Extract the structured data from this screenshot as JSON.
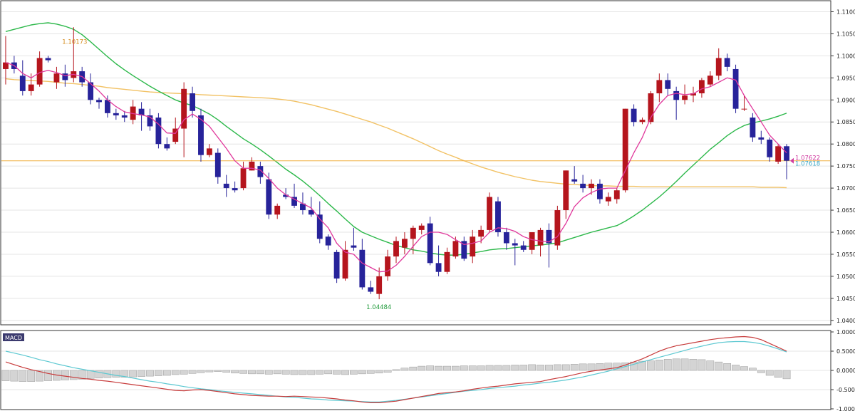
{
  "colors": {
    "bull": "#b5151d",
    "bear": "#27239a",
    "ma_fast": "#e0379b",
    "ma_mid": "#2cb84a",
    "ma_slow": "#f2c265",
    "macd_line": "#c73b3b",
    "signal_line": "#5cc8d1",
    "hist_fill": "#d4d4d4",
    "grid": "#e4e4e4",
    "hline": "#f0b040"
  },
  "price_axis": {
    "ticks": [
      "1.11000",
      "1.10500",
      "1.10000",
      "1.09500",
      "1.09000",
      "1.08500",
      "1.08000",
      "1.07500",
      "1.07000",
      "1.06500",
      "1.06000",
      "1.05500",
      "1.05000",
      "1.04500",
      "1.04000"
    ],
    "ylim": [
      1.039,
      1.1125
    ]
  },
  "annotations": {
    "high_label": "1.10173",
    "low_label": "1.04484",
    "price_line_1": "1.07622",
    "price_line_2": "1.07618"
  },
  "macd_panel": {
    "tag": "MACD",
    "ticks": [
      "1.0000",
      "0.5000",
      "0.0000",
      "-0.5000",
      "-1.0000"
    ],
    "ylim": [
      -1.0,
      1.0
    ]
  },
  "chart_data": [
    {
      "type": "candlestick",
      "title": "",
      "ohlc": [
        [
          1.097,
          1.1045,
          1.0935,
          1.0985
        ],
        [
          1.0985,
          1.1,
          1.096,
          1.097
        ],
        [
          1.0955,
          1.099,
          1.091,
          1.092
        ],
        [
          1.092,
          1.096,
          1.091,
          1.0935
        ],
        [
          1.0935,
          1.101,
          1.093,
          1.0995
        ],
        [
          1.0995,
          1.1,
          1.0985,
          1.099
        ],
        [
          1.094,
          1.0975,
          1.0925,
          1.096
        ],
        [
          1.096,
          1.098,
          1.093,
          1.0945
        ],
        [
          1.095,
          1.1065,
          1.094,
          1.0965
        ],
        [
          1.0965,
          1.0975,
          1.093,
          1.094
        ],
        [
          1.094,
          1.096,
          1.089,
          1.09
        ],
        [
          1.09,
          1.0905,
          1.088,
          1.0895
        ],
        [
          1.09,
          1.091,
          1.086,
          1.087
        ],
        [
          1.087,
          1.088,
          1.0855,
          1.0865
        ],
        [
          1.0865,
          1.0875,
          1.085,
          1.086
        ],
        [
          1.0855,
          1.09,
          1.0845,
          1.0885
        ],
        [
          1.088,
          1.0895,
          1.083,
          1.0865
        ],
        [
          1.0865,
          1.088,
          1.083,
          1.084
        ],
        [
          1.086,
          1.087,
          1.079,
          1.08
        ],
        [
          1.08,
          1.0815,
          1.0785,
          1.079
        ],
        [
          1.0805,
          1.086,
          1.08,
          1.0835
        ],
        [
          1.0835,
          1.094,
          1.077,
          1.0925
        ],
        [
          1.0915,
          1.093,
          1.086,
          1.0875
        ],
        [
          1.0865,
          1.088,
          1.076,
          1.0775
        ],
        [
          1.0775,
          1.08,
          1.077,
          1.079
        ],
        [
          1.078,
          1.079,
          1.071,
          1.0725
        ],
        [
          1.071,
          1.073,
          1.068,
          1.07
        ],
        [
          1.07,
          1.0715,
          1.069,
          1.0695
        ],
        [
          1.07,
          1.076,
          1.0695,
          1.0745
        ],
        [
          1.074,
          1.077,
          1.074,
          1.076
        ],
        [
          1.075,
          1.076,
          1.071,
          1.0725
        ],
        [
          1.072,
          1.0735,
          1.063,
          1.064
        ],
        [
          1.064,
          1.0665,
          1.063,
          1.066
        ],
        [
          1.0685,
          1.07,
          1.0675,
          1.068
        ],
        [
          1.068,
          1.071,
          1.0655,
          1.066
        ],
        [
          1.0665,
          1.069,
          1.064,
          1.065
        ],
        [
          1.065,
          1.068,
          1.0635,
          1.064
        ],
        [
          1.064,
          1.067,
          1.0575,
          1.0585
        ],
        [
          1.059,
          1.0595,
          1.056,
          1.057
        ],
        [
          1.0555,
          1.056,
          1.0485,
          1.0495
        ],
        [
          1.0495,
          1.058,
          1.049,
          1.056
        ],
        [
          1.057,
          1.061,
          1.0558,
          1.0565
        ],
        [
          1.056,
          1.0585,
          1.047,
          1.0475
        ],
        [
          1.0475,
          1.049,
          1.046,
          1.0465
        ],
        [
          1.046,
          1.052,
          1.0448,
          1.05
        ],
        [
          1.05,
          1.056,
          1.049,
          1.0545
        ],
        [
          1.0545,
          1.059,
          1.053,
          1.058
        ],
        [
          1.0565,
          1.06,
          1.055,
          1.0585
        ],
        [
          1.0585,
          1.0615,
          1.055,
          1.061
        ],
        [
          1.0605,
          1.062,
          1.0595,
          1.0615
        ],
        [
          1.062,
          1.0635,
          1.0525,
          1.053
        ],
        [
          1.053,
          1.057,
          1.05,
          1.051
        ],
        [
          1.051,
          1.0565,
          1.0505,
          1.0555
        ],
        [
          1.0545,
          1.059,
          1.054,
          1.058
        ],
        [
          1.058,
          1.059,
          1.0535,
          1.054
        ],
        [
          1.0545,
          1.0605,
          1.053,
          1.059
        ],
        [
          1.059,
          1.0615,
          1.0575,
          1.0605
        ],
        [
          1.0605,
          1.069,
          1.06,
          1.068
        ],
        [
          1.067,
          1.068,
          1.059,
          1.06
        ],
        [
          1.06,
          1.061,
          1.056,
          1.0575
        ],
        [
          1.0575,
          1.0585,
          1.0525,
          1.057
        ],
        [
          1.057,
          1.058,
          1.0555,
          1.056
        ],
        [
          1.056,
          1.06,
          1.055,
          1.06
        ],
        [
          1.057,
          1.061,
          1.0545,
          1.0605
        ],
        [
          1.0605,
          1.062,
          1.052,
          1.0575
        ],
        [
          1.057,
          1.066,
          1.056,
          1.065
        ],
        [
          1.065,
          1.074,
          1.063,
          1.074
        ],
        [
          1.072,
          1.075,
          1.071,
          1.0715
        ],
        [
          1.071,
          1.073,
          1.069,
          1.07
        ],
        [
          1.07,
          1.072,
          1.0685,
          1.071
        ],
        [
          1.071,
          1.072,
          1.0665,
          1.0675
        ],
        [
          1.067,
          1.069,
          1.066,
          1.068
        ],
        [
          1.0675,
          1.07,
          1.0665,
          1.0695
        ],
        [
          1.0695,
          1.088,
          1.069,
          1.088
        ],
        [
          1.088,
          1.089,
          1.084,
          1.085
        ],
        [
          1.085,
          1.086,
          1.0845,
          1.0855
        ],
        [
          1.085,
          1.092,
          1.0845,
          1.0915
        ],
        [
          1.0915,
          1.096,
          1.0895,
          1.0945
        ],
        [
          1.0945,
          1.096,
          1.091,
          1.0925
        ],
        [
          1.092,
          1.093,
          1.0855,
          1.09
        ],
        [
          1.09,
          1.0935,
          1.089,
          1.091
        ],
        [
          1.091,
          1.093,
          1.0895,
          1.0915
        ],
        [
          1.0915,
          1.095,
          1.0905,
          1.0945
        ],
        [
          1.0935,
          1.0965,
          1.093,
          1.0955
        ],
        [
          1.0955,
          1.1017,
          1.0945,
          1.0995
        ],
        [
          1.0995,
          1.1005,
          1.0965,
          1.0975
        ],
        [
          1.097,
          1.098,
          1.087,
          1.088
        ],
        [
          1.088,
          1.091,
          1.0875,
          1.088
        ],
        [
          1.086,
          1.087,
          1.0805,
          1.0815
        ],
        [
          1.0815,
          1.083,
          1.08,
          1.081
        ],
        [
          1.081,
          1.0815,
          1.076,
          1.077
        ],
        [
          1.076,
          1.08,
          1.0755,
          1.0795
        ],
        [
          1.0795,
          1.08,
          1.072,
          1.0762
        ]
      ],
      "ma_fast": [
        1.0985,
        1.0978,
        1.096,
        1.095,
        1.0962,
        1.0967,
        1.0962,
        1.0955,
        1.0958,
        1.0953,
        1.0937,
        1.092,
        1.09,
        1.0885,
        1.0873,
        1.0869,
        1.0866,
        1.0861,
        1.0845,
        1.0825,
        1.0824,
        1.0855,
        1.0868,
        1.0856,
        1.084,
        1.0815,
        1.079,
        1.0762,
        1.0745,
        1.0745,
        1.0741,
        1.0722,
        1.07,
        1.0685,
        1.0675,
        1.0665,
        1.0655,
        1.063,
        1.061,
        1.0575,
        1.0555,
        1.055,
        1.053,
        1.052,
        1.051,
        1.0512,
        1.0525,
        1.0545,
        1.0568,
        1.059,
        1.06,
        1.06,
        1.0595,
        1.0583,
        1.0572,
        1.0575,
        1.058,
        1.06,
        1.061,
        1.0608,
        1.0602,
        1.059,
        1.0583,
        1.058,
        1.0578,
        1.059,
        1.062,
        1.0658,
        1.0678,
        1.069,
        1.0698,
        1.07,
        1.07,
        1.074,
        1.078,
        1.0815,
        1.086,
        1.089,
        1.091,
        1.0915,
        1.0912,
        1.0914,
        1.0925,
        1.093,
        1.094,
        1.095,
        1.0945,
        1.091,
        1.088,
        1.085,
        1.082,
        1.08,
        1.078
      ],
      "ma_mid": [
        1.1055,
        1.106,
        1.1065,
        1.107,
        1.1073,
        1.1075,
        1.1072,
        1.1067,
        1.106,
        1.1048,
        1.1032,
        1.1015,
        1.0998,
        1.0982,
        1.0968,
        1.0955,
        1.0943,
        1.0931,
        1.092,
        1.091,
        1.09,
        1.0893,
        1.0887,
        1.0878,
        1.0868,
        1.0855,
        1.084,
        1.0826,
        1.0812,
        1.08,
        1.0787,
        1.0773,
        1.0758,
        1.0743,
        1.073,
        1.0716,
        1.07,
        1.0683,
        1.0665,
        1.0648,
        1.063,
        1.0613,
        1.06,
        1.0592,
        1.0584,
        1.0577,
        1.057,
        1.0565,
        1.056,
        1.0557,
        1.0553,
        1.055,
        1.0548,
        1.0548,
        1.055,
        1.0553,
        1.0556,
        1.056,
        1.0562,
        1.0563,
        1.0565,
        1.0567,
        1.0569,
        1.0571,
        1.0573,
        1.0576,
        1.0582,
        1.0588,
        1.0594,
        1.06,
        1.0605,
        1.061,
        1.0615,
        1.0625,
        1.0637,
        1.065,
        1.0665,
        1.068,
        1.0697,
        1.0715,
        1.0734,
        1.0752,
        1.077,
        1.0788,
        1.0803,
        1.0819,
        1.0832,
        1.0842,
        1.0848,
        1.0852,
        1.0857,
        1.0863,
        1.087
      ],
      "ma_slow": [
        1.0948,
        1.0946,
        1.0945,
        1.0944,
        1.0943,
        1.0942,
        1.094,
        1.0938,
        1.0937,
        1.0935,
        1.0933,
        1.0931,
        1.0928,
        1.0926,
        1.0924,
        1.0922,
        1.092,
        1.0918,
        1.0917,
        1.0916,
        1.0915,
        1.0914,
        1.0913,
        1.0912,
        1.0911,
        1.091,
        1.0909,
        1.0908,
        1.0907,
        1.0906,
        1.0905,
        1.0904,
        1.0902,
        1.09,
        1.0897,
        1.0893,
        1.0889,
        1.0884,
        1.0879,
        1.0874,
        1.0868,
        1.0862,
        1.0856,
        1.085,
        1.0843,
        1.0836,
        1.0828,
        1.082,
        1.0812,
        1.0803,
        1.0794,
        1.0785,
        1.0777,
        1.077,
        1.0762,
        1.0755,
        1.0748,
        1.0742,
        1.0736,
        1.0731,
        1.0726,
        1.0722,
        1.0718,
        1.0715,
        1.0713,
        1.0711,
        1.0709,
        1.0708,
        1.0707,
        1.0706,
        1.0705,
        1.0705,
        1.0704,
        1.0704,
        1.0704,
        1.0703,
        1.0703,
        1.0703,
        1.0703,
        1.0703,
        1.0703,
        1.0703,
        1.0703,
        1.0703,
        1.0703,
        1.0703,
        1.0703,
        1.0703,
        1.0703,
        1.0702,
        1.0702,
        1.0702,
        1.0701
      ],
      "h_level": 1.0762,
      "high_marker": 1.10173,
      "low_marker": 1.04484
    },
    {
      "type": "macd",
      "title": "MACD",
      "histogram": [
        -0.27,
        -0.28,
        -0.29,
        -0.29,
        -0.28,
        -0.27,
        -0.26,
        -0.25,
        -0.24,
        -0.23,
        -0.21,
        -0.2,
        -0.19,
        -0.18,
        -0.18,
        -0.17,
        -0.16,
        -0.15,
        -0.14,
        -0.13,
        -0.11,
        -0.1,
        -0.08,
        -0.06,
        -0.04,
        -0.03,
        -0.05,
        -0.07,
        -0.08,
        -0.09,
        -0.09,
        -0.1,
        -0.09,
        -0.1,
        -0.11,
        -0.11,
        -0.11,
        -0.1,
        -0.09,
        -0.1,
        -0.11,
        -0.1,
        -0.09,
        -0.08,
        -0.07,
        -0.05,
        0.02,
        0.06,
        0.09,
        0.11,
        0.12,
        0.11,
        0.11,
        0.11,
        0.12,
        0.12,
        0.12,
        0.13,
        0.13,
        0.13,
        0.14,
        0.14,
        0.15,
        0.14,
        0.14,
        0.15,
        0.15,
        0.16,
        0.17,
        0.17,
        0.18,
        0.19,
        0.19,
        0.2,
        0.22,
        0.24,
        0.25,
        0.27,
        0.29,
        0.3,
        0.3,
        0.29,
        0.28,
        0.25,
        0.22,
        0.18,
        0.14,
        0.1,
        0.06,
        -0.06,
        -0.13,
        -0.18,
        -0.22
      ],
      "macd": [
        0.22,
        0.15,
        0.08,
        0.02,
        -0.03,
        -0.08,
        -0.12,
        -0.15,
        -0.18,
        -0.21,
        -0.23,
        -0.26,
        -0.28,
        -0.31,
        -0.34,
        -0.37,
        -0.4,
        -0.43,
        -0.46,
        -0.49,
        -0.52,
        -0.53,
        -0.51,
        -0.5,
        -0.52,
        -0.55,
        -0.58,
        -0.61,
        -0.63,
        -0.65,
        -0.66,
        -0.67,
        -0.67,
        -0.68,
        -0.67,
        -0.68,
        -0.69,
        -0.7,
        -0.72,
        -0.74,
        -0.77,
        -0.79,
        -0.82,
        -0.84,
        -0.84,
        -0.82,
        -0.8,
        -0.76,
        -0.72,
        -0.68,
        -0.64,
        -0.6,
        -0.58,
        -0.56,
        -0.53,
        -0.49,
        -0.46,
        -0.43,
        -0.41,
        -0.38,
        -0.35,
        -0.33,
        -0.31,
        -0.29,
        -0.24,
        -0.2,
        -0.16,
        -0.11,
        -0.06,
        -0.02,
        0.01,
        0.04,
        0.07,
        0.14,
        0.22,
        0.3,
        0.4,
        0.5,
        0.58,
        0.64,
        0.68,
        0.72,
        0.76,
        0.8,
        0.83,
        0.85,
        0.87,
        0.88,
        0.86,
        0.8,
        0.7,
        0.6,
        0.5
      ],
      "signal": [
        0.5,
        0.45,
        0.4,
        0.34,
        0.28,
        0.23,
        0.17,
        0.12,
        0.07,
        0.03,
        -0.01,
        -0.05,
        -0.09,
        -0.13,
        -0.16,
        -0.2,
        -0.24,
        -0.28,
        -0.31,
        -0.35,
        -0.38,
        -0.42,
        -0.45,
        -0.48,
        -0.5,
        -0.53,
        -0.55,
        -0.57,
        -0.59,
        -0.61,
        -0.63,
        -0.65,
        -0.67,
        -0.69,
        -0.7,
        -0.72,
        -0.74,
        -0.75,
        -0.77,
        -0.78,
        -0.79,
        -0.8,
        -0.81,
        -0.82,
        -0.82,
        -0.8,
        -0.78,
        -0.75,
        -0.72,
        -0.69,
        -0.66,
        -0.63,
        -0.6,
        -0.57,
        -0.54,
        -0.52,
        -0.5,
        -0.47,
        -0.45,
        -0.43,
        -0.41,
        -0.38,
        -0.36,
        -0.33,
        -0.31,
        -0.28,
        -0.25,
        -0.21,
        -0.17,
        -0.12,
        -0.07,
        -0.02,
        0.04,
        0.1,
        0.16,
        0.22,
        0.28,
        0.34,
        0.4,
        0.46,
        0.52,
        0.58,
        0.63,
        0.68,
        0.72,
        0.74,
        0.75,
        0.75,
        0.73,
        0.69,
        0.63,
        0.56,
        0.48
      ]
    }
  ]
}
